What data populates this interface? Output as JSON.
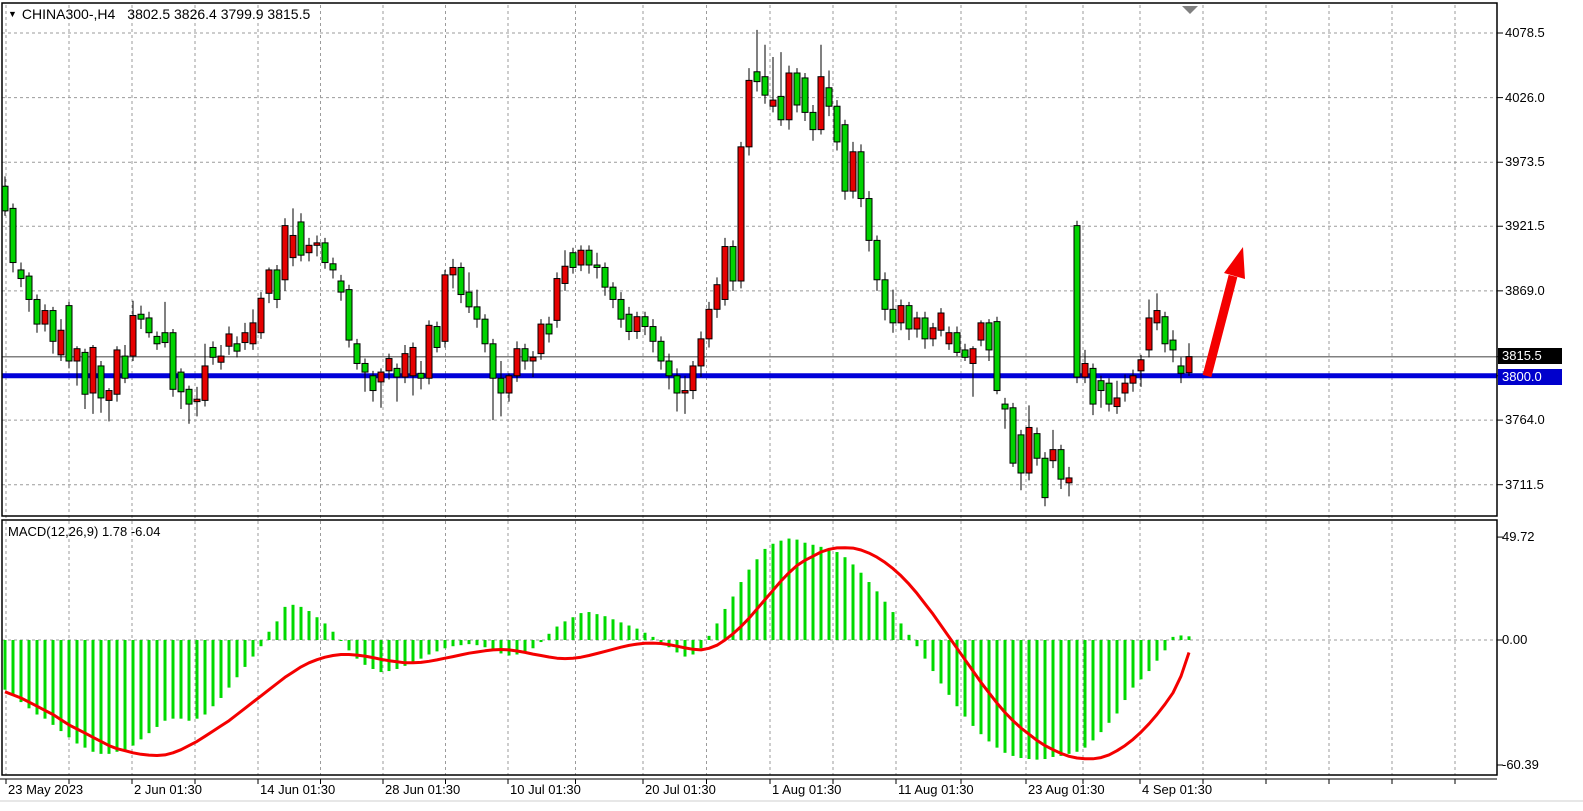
{
  "title_bar": {
    "symbol": "CHINA300-,H4",
    "ohlc_values": "3802.5 3826.4 3799.9 3815.5"
  },
  "indicator": {
    "label": "MACD(12,26,9)",
    "values_text": "1.78 -6.04"
  },
  "price_axis": {
    "tick_labels": [
      "4078.5",
      "4026.0",
      "3973.5",
      "3921.5",
      "3869.0",
      "3764.0",
      "3711.5"
    ],
    "tick_values": [
      4078.5,
      4026.0,
      3973.5,
      3921.5,
      3869.0,
      3764.0,
      3711.5
    ],
    "bid_tag": "3815.5",
    "hline_tag": "3800.0"
  },
  "time_axis": {
    "labels": [
      "23 May 2023",
      "2 Jun 01:30",
      "14 Jun 01:30",
      "28 Jun 01:30",
      "10 Jul 01:30",
      "20 Jul 01:30",
      "1 Aug 01:30",
      "11 Aug 01:30",
      "23 Aug 01:30",
      "4 Sep 01:30"
    ]
  },
  "colors": {
    "up": "#e60000",
    "down": "#00d300",
    "outline": "#000000",
    "grid": "#9b9b9b",
    "signal": "#f40000",
    "hist": "#00d900",
    "hline": "#0000d9",
    "bid_line": "#808080",
    "bid_tag_bg": "#000000",
    "hline_tag_bg": "#0000cc",
    "arrow": "#f40000",
    "marker": "#808080"
  },
  "chart_data": {
    "type": "candlestick",
    "symbol": "CHINA300-",
    "timeframe": "H4",
    "current_ohlc": {
      "open": 3802.5,
      "high": 3826.4,
      "low": 3799.9,
      "close": 3815.5
    },
    "horizontal_line_value": 3800.0,
    "bid_price": 3815.5,
    "ylim": [
      3690,
      4085
    ],
    "y_ticks": [
      4078.5,
      4026.0,
      3973.5,
      3921.5,
      3869.0,
      3815.5,
      3800.0,
      3764.0,
      3711.5
    ],
    "x_labels": [
      "23 May 2023",
      "2 Jun 01:30",
      "14 Jun 01:30",
      "28 Jun 01:30",
      "10 Jul 01:30",
      "20 Jul 01:30",
      "1 Aug 01:30",
      "11 Aug 01:30",
      "23 Aug 01:30",
      "4 Sep 01:30"
    ],
    "annotation": {
      "shape": "arrow-up-right",
      "color": "red",
      "from_price": 3800,
      "to_price": 3905
    },
    "candles_ohlc": [
      [
        3954,
        3962,
        3930,
        3934
      ],
      [
        3936,
        3940,
        3884,
        3892
      ],
      [
        3886,
        3892,
        3872,
        3879
      ],
      [
        3881,
        3884,
        3852,
        3862
      ],
      [
        3862,
        3866,
        3835,
        3842
      ],
      [
        3842,
        3858,
        3836,
        3853
      ],
      [
        3853,
        3856,
        3818,
        3828
      ],
      [
        3817,
        3846,
        3812,
        3837
      ],
      [
        3857,
        3860,
        3806,
        3812
      ],
      [
        3812,
        3824,
        3792,
        3822
      ],
      [
        3819,
        3822,
        3773,
        3785
      ],
      [
        3786,
        3825,
        3769,
        3823
      ],
      [
        3808,
        3812,
        3770,
        3782
      ],
      [
        3780,
        3790,
        3763,
        3788
      ],
      [
        3785,
        3824,
        3779,
        3821
      ],
      [
        3816,
        3825,
        3794,
        3798
      ],
      [
        3816,
        3861,
        3812,
        3849
      ],
      [
        3850,
        3857,
        3838,
        3846
      ],
      [
        3847,
        3852,
        3831,
        3835
      ],
      [
        3832,
        3836,
        3821,
        3826
      ],
      [
        3835,
        3860,
        3823,
        3827
      ],
      [
        3835,
        3838,
        3783,
        3789
      ],
      [
        3803,
        3806,
        3773,
        3787
      ],
      [
        3789,
        3792,
        3761,
        3777
      ],
      [
        3779,
        3791,
        3767,
        3781
      ],
      [
        3780,
        3826,
        3775,
        3808
      ],
      [
        3823,
        3828,
        3809,
        3815
      ],
      [
        3811,
        3825,
        3805,
        3816
      ],
      [
        3824,
        3840,
        3817,
        3834
      ],
      [
        3826,
        3832,
        3815,
        3820
      ],
      [
        3827,
        3843,
        3821,
        3835
      ],
      [
        3826,
        3854,
        3821,
        3843
      ],
      [
        3835,
        3868,
        3830,
        3863
      ],
      [
        3867,
        3888,
        3859,
        3886
      ],
      [
        3886,
        3890,
        3855,
        3862
      ],
      [
        3878,
        3928,
        3869,
        3922
      ],
      [
        3896,
        3936,
        3889,
        3914
      ],
      [
        3925,
        3932,
        3893,
        3898
      ],
      [
        3900,
        3912,
        3893,
        3906
      ],
      [
        3906,
        3914,
        3897,
        3908
      ],
      [
        3908,
        3912,
        3887,
        3892
      ],
      [
        3891,
        3896,
        3879,
        3886
      ],
      [
        3877,
        3882,
        3861,
        3868
      ],
      [
        3870,
        3874,
        3823,
        3829
      ],
      [
        3826,
        3830,
        3805,
        3810
      ],
      [
        3810,
        3814,
        3787,
        3803
      ],
      [
        3800,
        3804,
        3779,
        3788
      ],
      [
        3795,
        3806,
        3774,
        3803
      ],
      [
        3804,
        3818,
        3797,
        3814
      ],
      [
        3806,
        3810,
        3779,
        3799
      ],
      [
        3799,
        3825,
        3794,
        3818
      ],
      [
        3800,
        3827,
        3784,
        3823
      ],
      [
        3802,
        3812,
        3789,
        3798
      ],
      [
        3798,
        3845,
        3793,
        3841
      ],
      [
        3840,
        3844,
        3819,
        3823
      ],
      [
        3828,
        3886,
        3823,
        3882
      ],
      [
        3882,
        3895,
        3871,
        3888
      ],
      [
        3888,
        3892,
        3859,
        3866
      ],
      [
        3868,
        3884,
        3851,
        3856
      ],
      [
        3856,
        3870,
        3839,
        3846
      ],
      [
        3846,
        3850,
        3819,
        3826
      ],
      [
        3826,
        3830,
        3764,
        3798
      ],
      [
        3798,
        3812,
        3767,
        3786
      ],
      [
        3786,
        3802,
        3779,
        3800
      ],
      [
        3800,
        3828,
        3795,
        3822
      ],
      [
        3822,
        3826,
        3805,
        3812
      ],
      [
        3812,
        3820,
        3799,
        3815
      ],
      [
        3818,
        3846,
        3813,
        3842
      ],
      [
        3842,
        3848,
        3827,
        3834
      ],
      [
        3845,
        3884,
        3839,
        3879
      ],
      [
        3875,
        3902,
        3869,
        3889
      ],
      [
        3900,
        3904,
        3883,
        3888
      ],
      [
        3890,
        3906,
        3885,
        3902
      ],
      [
        3902,
        3906,
        3883,
        3890
      ],
      [
        3890,
        3900,
        3879,
        3888
      ],
      [
        3888,
        3892,
        3865,
        3872
      ],
      [
        3872,
        3876,
        3855,
        3862
      ],
      [
        3862,
        3868,
        3839,
        3846
      ],
      [
        3850,
        3856,
        3829,
        3836
      ],
      [
        3836,
        3852,
        3830,
        3848
      ],
      [
        3848,
        3852,
        3833,
        3840
      ],
      [
        3840,
        3846,
        3819,
        3828
      ],
      [
        3828,
        3832,
        3805,
        3812
      ],
      [
        3812,
        3818,
        3789,
        3800
      ],
      [
        3800,
        3806,
        3771,
        3786
      ],
      [
        3786,
        3800,
        3769,
        3788
      ],
      [
        3788,
        3812,
        3781,
        3808
      ],
      [
        3808,
        3836,
        3799,
        3830
      ],
      [
        3830,
        3860,
        3823,
        3854
      ],
      [
        3854,
        3880,
        3847,
        3874
      ],
      [
        3862,
        3912,
        3857,
        3905
      ],
      [
        3905,
        3910,
        3869,
        3877
      ],
      [
        3877,
        3990,
        3871,
        3986
      ],
      [
        3986,
        4050,
        3979,
        4040
      ],
      [
        4047,
        4081,
        4031,
        4039
      ],
      [
        4043,
        4069,
        4021,
        4028
      ],
      [
        4019,
        4059,
        4014,
        4024
      ],
      [
        4027,
        4063,
        4003,
        4008
      ],
      [
        4008,
        4052,
        4000,
        4046
      ],
      [
        4046,
        4050,
        4014,
        4020
      ],
      [
        4042,
        4046,
        4007,
        4014
      ],
      [
        4014,
        4020,
        3991,
        4000
      ],
      [
        4000,
        4069,
        3996,
        4043
      ],
      [
        4034,
        4048,
        4011,
        4019
      ],
      [
        4019,
        4024,
        3983,
        3990
      ],
      [
        4004,
        4008,
        3943,
        3950
      ],
      [
        3950,
        3990,
        3944,
        3982
      ],
      [
        3982,
        3988,
        3937,
        3944
      ],
      [
        3944,
        3950,
        3901,
        3910
      ],
      [
        3910,
        3914,
        3869,
        3878
      ],
      [
        3878,
        3884,
        3845,
        3854
      ],
      [
        3854,
        3870,
        3835,
        3843
      ],
      [
        3843,
        3862,
        3837,
        3857
      ],
      [
        3857,
        3860,
        3829,
        3838
      ],
      [
        3838,
        3852,
        3831,
        3847
      ],
      [
        3847,
        3852,
        3822,
        3830
      ],
      [
        3830,
        3843,
        3824,
        3839
      ],
      [
        3837,
        3855,
        3832,
        3851
      ],
      [
        3826,
        3840,
        3821,
        3835
      ],
      [
        3835,
        3840,
        3816,
        3819
      ],
      [
        3821,
        3826,
        3812,
        3815
      ],
      [
        3810,
        3824,
        3783,
        3822
      ],
      [
        3829,
        3845,
        3824,
        3843
      ],
      [
        3843,
        3846,
        3812,
        3821
      ],
      [
        3844,
        3848,
        3785,
        3788
      ],
      [
        3777,
        3782,
        3757,
        3773
      ],
      [
        3774,
        3778,
        3726,
        3729
      ],
      [
        3752,
        3756,
        3707,
        3721
      ],
      [
        3721,
        3776,
        3715,
        3758
      ],
      [
        3753,
        3758,
        3727,
        3733
      ],
      [
        3733,
        3738,
        3694,
        3701
      ],
      [
        3731,
        3756,
        3725,
        3740
      ],
      [
        3740,
        3744,
        3708,
        3716
      ],
      [
        3713,
        3726,
        3702,
        3717
      ],
      [
        3922,
        3926,
        3794,
        3799
      ],
      [
        3799,
        3821,
        3794,
        3810
      ],
      [
        3806,
        3810,
        3768,
        3777
      ],
      [
        3796,
        3800,
        3774,
        3788
      ],
      [
        3794,
        3798,
        3771,
        3777
      ],
      [
        3775,
        3796,
        3769,
        3782
      ],
      [
        3786,
        3801,
        3779,
        3794
      ],
      [
        3794,
        3805,
        3787,
        3800
      ],
      [
        3804,
        3817,
        3791,
        3813
      ],
      [
        3821,
        3862,
        3815,
        3847
      ],
      [
        3843,
        3867,
        3837,
        3853
      ],
      [
        3848,
        3852,
        3819,
        3826
      ],
      [
        3829,
        3837,
        3811,
        3821
      ],
      [
        3808,
        3815,
        3794,
        3802
      ],
      [
        3802.5,
        3826.4,
        3799.9,
        3815.5
      ]
    ],
    "macd": {
      "params": "12,26,9",
      "main_value": 1.78,
      "signal_value": -6.04,
      "axis_labels": [
        "49.72",
        "0.00",
        "-60.39"
      ],
      "axis_values": [
        49.72,
        0.0,
        -60.39
      ],
      "histogram": [
        -24,
        -27,
        -30,
        -33,
        -36,
        -38,
        -41,
        -44,
        -47,
        -50,
        -52,
        -54,
        -55,
        -55,
        -54,
        -53,
        -51,
        -48,
        -45,
        -42,
        -39,
        -38,
        -38,
        -39,
        -38,
        -36,
        -32,
        -28,
        -23,
        -18,
        -13,
        -8,
        -3,
        4,
        9,
        16,
        17,
        16,
        14,
        11,
        8,
        4,
        0,
        -5,
        -9,
        -12,
        -14,
        -15.5,
        -15,
        -14,
        -12.5,
        -11,
        -9,
        -7,
        -5.5,
        -4,
        -3,
        -2.5,
        -2,
        -2.5,
        -3.5,
        -5,
        -6.5,
        -7.5,
        -7,
        -6,
        -4,
        -1,
        3,
        6.5,
        9,
        11,
        13,
        13.5,
        12.5,
        11.5,
        10,
        8.5,
        7,
        5.5,
        3.5,
        1.5,
        -1,
        -3.5,
        -6,
        -8,
        -7,
        -4,
        2,
        8,
        15,
        21,
        28,
        34,
        39,
        44,
        46.5,
        48,
        49,
        48.5,
        47,
        46,
        45,
        44,
        42.5,
        40,
        36.5,
        32.5,
        28,
        23.5,
        18.5,
        13.5,
        8,
        2.5,
        -3,
        -9,
        -15,
        -21,
        -26.5,
        -32,
        -37,
        -41.5,
        -45.5,
        -49,
        -52,
        -54.5,
        -56,
        -57,
        -57.5,
        -57.8,
        -57.5,
        -56.5,
        -56,
        -55,
        -54,
        -52,
        -48.5,
        -44.5,
        -40,
        -35.5,
        -29,
        -23,
        -19,
        -15,
        -10,
        -5,
        1.5,
        2.2,
        1.78
      ],
      "signal": [
        -25,
        -26.5,
        -28,
        -30,
        -32,
        -34,
        -36,
        -38.5,
        -41,
        -43,
        -45,
        -47,
        -49,
        -51,
        -52.5,
        -53.5,
        -54.5,
        -55.2,
        -55.6,
        -55.8,
        -55.5,
        -54.5,
        -53,
        -51,
        -49,
        -46.5,
        -44,
        -41.5,
        -39,
        -36,
        -33,
        -30,
        -27,
        -24,
        -21,
        -18,
        -15.5,
        -13,
        -11,
        -9.5,
        -8.3,
        -7.5,
        -7,
        -7,
        -7.3,
        -7.8,
        -8.5,
        -9.3,
        -10,
        -10.5,
        -11,
        -11,
        -10.8,
        -10.3,
        -9.6,
        -8.8,
        -8,
        -7.2,
        -6.4,
        -5.8,
        -5.2,
        -4.8,
        -4.6,
        -4.8,
        -5.3,
        -6,
        -6.8,
        -7.5,
        -8.2,
        -8.8,
        -9,
        -8.8,
        -8.3,
        -7.5,
        -6.5,
        -5.5,
        -4.5,
        -3.5,
        -2.6,
        -2,
        -1.6,
        -1.5,
        -1.7,
        -2.2,
        -3,
        -3.8,
        -4.5,
        -4.8,
        -4,
        -2.5,
        0,
        3,
        6.5,
        10.5,
        15,
        19.5,
        24,
        28.5,
        32.5,
        36,
        38.5,
        40.5,
        42.5,
        43.8,
        44.5,
        44.6,
        44.4,
        43.5,
        42,
        40,
        37.5,
        34.5,
        31,
        27,
        22.5,
        17.5,
        12.5,
        7,
        1.5,
        -4,
        -9.5,
        -15,
        -20.5,
        -25.5,
        -30.5,
        -35,
        -39,
        -42.5,
        -45.5,
        -48.5,
        -51,
        -53,
        -54.8,
        -56.2,
        -57,
        -57.4,
        -57.4,
        -56.8,
        -55.5,
        -53.5,
        -51,
        -48,
        -44.5,
        -40.5,
        -36,
        -31,
        -25.5,
        -17.5,
        -6.04
      ]
    }
  }
}
